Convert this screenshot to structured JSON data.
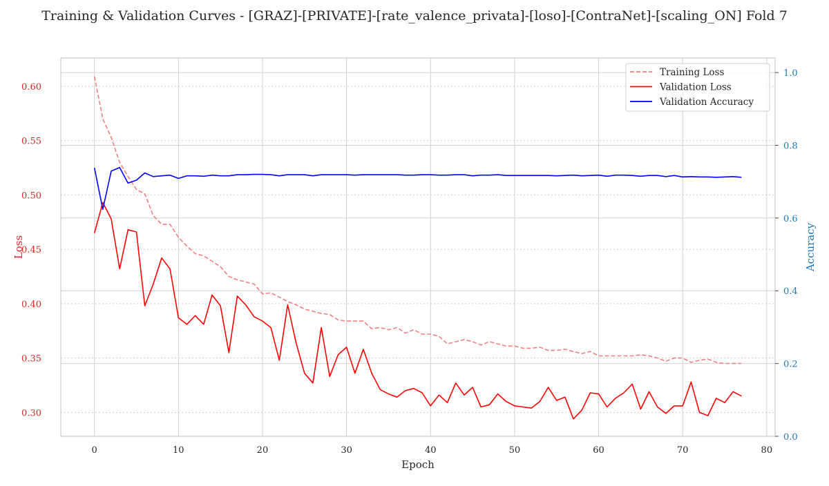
{
  "chart_data": {
    "type": "line",
    "title": "Training & Validation Curves - [GRAZ]-[PRIVATE]-[rate_valence_privata]-[loso]-[ContraNet]-[scaling_ON] Fold 7",
    "xlabel": "Epoch",
    "ylabel_left": "Loss",
    "ylabel_right": "Accuracy",
    "xlim": [
      -4,
      81
    ],
    "ylim_left": [
      0.278,
      0.626
    ],
    "ylim_right": [
      0.0,
      1.04
    ],
    "x_ticks": [
      0,
      10,
      20,
      30,
      40,
      50,
      60,
      70,
      80
    ],
    "y_left_ticks": [
      0.3,
      0.35,
      0.4,
      0.45,
      0.5,
      0.55,
      0.6
    ],
    "y_right_ticks": [
      0.0,
      0.2,
      0.4,
      0.6,
      0.8,
      1.0
    ],
    "legend_position": "top-right",
    "grid": true,
    "colors": {
      "training_loss": "#f08080",
      "validation_loss": "#ff0000",
      "validation_accuracy": "#0000ff",
      "left_axis": "#d62728",
      "right_axis": "#1f77b4"
    },
    "x": [
      0,
      1,
      2,
      3,
      4,
      5,
      6,
      7,
      8,
      9,
      10,
      11,
      12,
      13,
      14,
      15,
      16,
      17,
      18,
      19,
      20,
      21,
      22,
      23,
      24,
      25,
      26,
      27,
      28,
      29,
      30,
      31,
      32,
      33,
      34,
      35,
      36,
      37,
      38,
      39,
      40,
      41,
      42,
      43,
      44,
      45,
      46,
      47,
      48,
      49,
      50,
      51,
      52,
      53,
      54,
      55,
      56,
      57,
      58,
      59,
      60,
      61,
      62,
      63,
      64,
      65,
      66,
      67,
      68,
      69,
      70,
      71,
      72,
      73,
      74,
      75,
      76,
      77
    ],
    "series": [
      {
        "name": "Training Loss",
        "axis": "left",
        "style": "dashed",
        "values": [
          0.609,
          0.57,
          0.553,
          0.53,
          0.517,
          0.505,
          0.501,
          0.481,
          0.473,
          0.473,
          0.461,
          0.453,
          0.446,
          0.444,
          0.439,
          0.434,
          0.425,
          0.422,
          0.42,
          0.418,
          0.409,
          0.41,
          0.406,
          0.402,
          0.399,
          0.395,
          0.393,
          0.391,
          0.39,
          0.385,
          0.384,
          0.384,
          0.384,
          0.377,
          0.378,
          0.376,
          0.378,
          0.373,
          0.376,
          0.372,
          0.372,
          0.37,
          0.363,
          0.365,
          0.367,
          0.365,
          0.362,
          0.365,
          0.363,
          0.361,
          0.361,
          0.359,
          0.359,
          0.36,
          0.357,
          0.357,
          0.358,
          0.356,
          0.354,
          0.356,
          0.352,
          0.352,
          0.352,
          0.352,
          0.352,
          0.353,
          0.352,
          0.35,
          0.347,
          0.35,
          0.35,
          0.346,
          0.348,
          0.349,
          0.346,
          0.345,
          0.345,
          0.345
        ]
      },
      {
        "name": "Validation Loss",
        "axis": "left",
        "style": "solid",
        "values": [
          0.465,
          0.493,
          0.478,
          0.432,
          0.468,
          0.466,
          0.398,
          0.418,
          0.442,
          0.432,
          0.387,
          0.381,
          0.389,
          0.381,
          0.408,
          0.398,
          0.355,
          0.407,
          0.399,
          0.388,
          0.384,
          0.378,
          0.348,
          0.399,
          0.364,
          0.336,
          0.327,
          0.378,
          0.333,
          0.353,
          0.36,
          0.336,
          0.358,
          0.336,
          0.321,
          0.317,
          0.314,
          0.32,
          0.322,
          0.318,
          0.306,
          0.316,
          0.309,
          0.327,
          0.316,
          0.323,
          0.305,
          0.307,
          0.317,
          0.31,
          0.306,
          0.305,
          0.304,
          0.31,
          0.323,
          0.311,
          0.314,
          0.294,
          0.302,
          0.318,
          0.317,
          0.305,
          0.313,
          0.318,
          0.326,
          0.303,
          0.319,
          0.305,
          0.299,
          0.306,
          0.306,
          0.328,
          0.3,
          0.297,
          0.313,
          0.309,
          0.319,
          0.315
        ]
      },
      {
        "name": "Validation Accuracy",
        "axis": "right",
        "style": "solid",
        "values": [
          0.738,
          0.624,
          0.729,
          0.739,
          0.696,
          0.704,
          0.724,
          0.714,
          0.716,
          0.718,
          0.709,
          0.716,
          0.716,
          0.715,
          0.718,
          0.716,
          0.716,
          0.719,
          0.719,
          0.72,
          0.72,
          0.719,
          0.716,
          0.719,
          0.719,
          0.719,
          0.716,
          0.719,
          0.719,
          0.719,
          0.719,
          0.718,
          0.719,
          0.719,
          0.719,
          0.719,
          0.719,
          0.718,
          0.718,
          0.719,
          0.719,
          0.718,
          0.718,
          0.719,
          0.719,
          0.716,
          0.718,
          0.718,
          0.719,
          0.717,
          0.717,
          0.717,
          0.717,
          0.717,
          0.717,
          0.716,
          0.717,
          0.718,
          0.716,
          0.717,
          0.718,
          0.715,
          0.718,
          0.718,
          0.717,
          0.715,
          0.717,
          0.717,
          0.714,
          0.717,
          0.713,
          0.714,
          0.713,
          0.713,
          0.712,
          0.713,
          0.714,
          0.712
        ]
      }
    ]
  }
}
